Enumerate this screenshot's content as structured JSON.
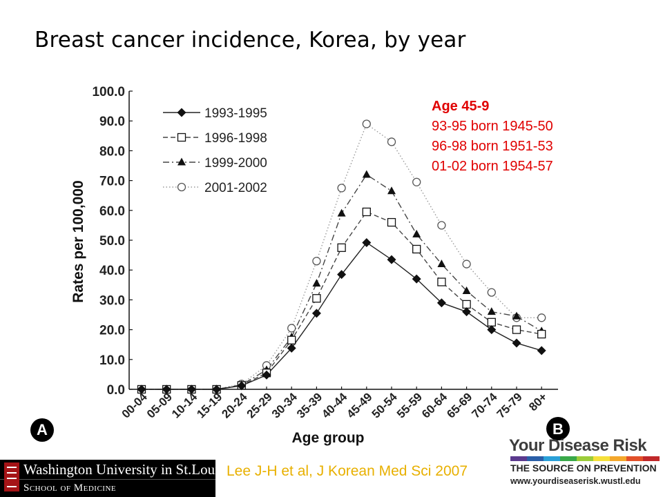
{
  "slide": {
    "title": "Breast cancer incidence,  Korea, by year",
    "citation": "Lee J-H et al, J Korean Med Sci 2007",
    "citation_color": "#e8b000"
  },
  "annotation": {
    "title": "Age 45-9",
    "lines": [
      "93-95 born 1945-50",
      "96-98 born 1951-53",
      "01-02 born 1954-57"
    ],
    "color": "#e00000"
  },
  "panel_labels": {
    "left": "A",
    "right": "B"
  },
  "logos": {
    "wustl": {
      "name": "Washington University in St.Louis",
      "school": "School of Medicine"
    },
    "ydr": {
      "title": "Your Disease Risk",
      "tagline": "THE SOURCE ON PREVENTION",
      "url": "www.yourdiseaserisk.wustl.edu",
      "bar_colors": [
        "#5b3a8e",
        "#2a5fa8",
        "#2aa0d8",
        "#3aa94a",
        "#9ccc3a",
        "#f5e03a",
        "#f4a82c",
        "#e2502a",
        "#c0282a"
      ]
    }
  },
  "chart_data": {
    "type": "line",
    "xlabel": "Age group",
    "ylabel": "Rates per 100,000",
    "ylim": [
      0,
      100
    ],
    "yticks": [
      "0.0",
      "10.0",
      "20.0",
      "30.0",
      "40.0",
      "50.0",
      "60.0",
      "70.0",
      "80.0",
      "90.0",
      "100.0"
    ],
    "grid": false,
    "legend_position": "top-left",
    "categories": [
      "00-04",
      "05-09",
      "10-14",
      "15-19",
      "20-24",
      "25-29",
      "30-34",
      "35-39",
      "40-44",
      "45-49",
      "50-54",
      "55-59",
      "60-64",
      "65-69",
      "70-74",
      "75-79",
      "80+"
    ],
    "series": [
      {
        "name": "1993-1995",
        "marker": "diamond-filled",
        "line": "solid",
        "values": [
          0,
          0,
          0,
          0,
          1.2,
          4.8,
          13.8,
          25.5,
          38.5,
          49.2,
          43.5,
          37.0,
          29.0,
          26.0,
          20.0,
          15.5,
          13.0
        ]
      },
      {
        "name": "1996-1998",
        "marker": "square-open",
        "line": "dashed",
        "values": [
          0,
          0,
          0,
          0,
          1.3,
          5.5,
          16.5,
          30.5,
          47.5,
          59.5,
          56.0,
          47.0,
          36.0,
          28.5,
          22.5,
          20.0,
          18.5
        ]
      },
      {
        "name": "1999-2000",
        "marker": "triangle-filled",
        "line": "dash-dot",
        "values": [
          0,
          0,
          0,
          0,
          1.5,
          6.5,
          17.5,
          35.5,
          59.0,
          72.0,
          66.5,
          52.0,
          42.0,
          33.0,
          26.0,
          24.5,
          19.5
        ]
      },
      {
        "name": "2001-2002",
        "marker": "circle-open",
        "line": "dotted",
        "values": [
          0,
          0,
          0,
          0,
          1.8,
          8.0,
          20.5,
          43.0,
          67.5,
          89.0,
          83.0,
          69.5,
          55.0,
          42.0,
          32.5,
          24.0,
          24.0
        ]
      }
    ]
  }
}
